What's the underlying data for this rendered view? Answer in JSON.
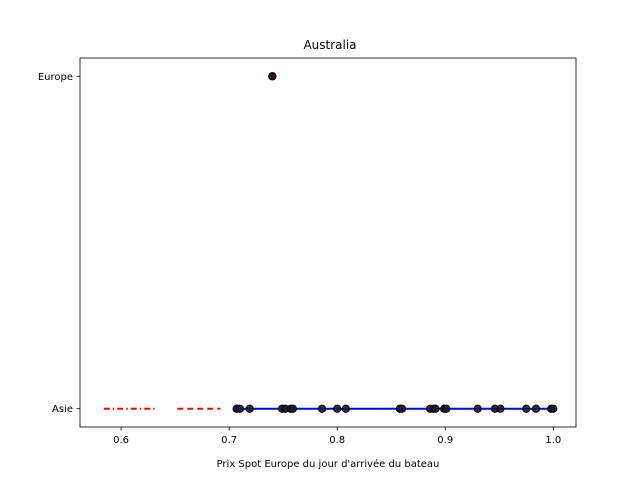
{
  "chart_data": {
    "type": "scatter",
    "title": "Australia",
    "xlabel": "Prix Spot Europe du jour d'arrivée du bateau",
    "ylabel": "",
    "xlim": [
      0.562,
      1.021
    ],
    "ylim": [
      -0.055,
      1.055
    ],
    "x_ticks": [
      0.6,
      0.7,
      0.8,
      0.9,
      1.0
    ],
    "x_tick_labels": [
      "0.6",
      "0.7",
      "0.8",
      "0.9",
      "1.0"
    ],
    "y_ticks": [
      0,
      1
    ],
    "y_tick_labels": [
      "Asie",
      "Europe"
    ],
    "grid": false,
    "points": {
      "x": [
        0.707,
        0.71,
        0.719,
        0.74,
        0.749,
        0.752,
        0.757,
        0.759,
        0.786,
        0.8,
        0.808,
        0.858,
        0.86,
        0.886,
        0.889,
        0.891,
        0.899,
        0.901,
        0.93,
        0.946,
        0.951,
        0.975,
        0.984,
        0.998,
        1.0
      ],
      "y": [
        0,
        0,
        0,
        1,
        0,
        0,
        0,
        0,
        0,
        0,
        0,
        0,
        0,
        0,
        0,
        0,
        0,
        0,
        0,
        0,
        0,
        0,
        0,
        0,
        0
      ],
      "marker_face": "#1a1a33",
      "marker_edge": "#000000",
      "highlight_x": [
        0.707,
        0.74
      ],
      "highlight_y": [
        0,
        1
      ],
      "highlight_color": "#ff0000"
    },
    "lines": [
      {
        "x": [
          0.707,
          1.0
        ],
        "y": [
          0,
          0
        ],
        "color": "#0000ff",
        "style": "solid"
      },
      {
        "x": [
          0.584,
          0.632
        ],
        "y": [
          0,
          0
        ],
        "color": "#ff0000",
        "style": "dashdot"
      },
      {
        "x": [
          0.652,
          0.692
        ],
        "y": [
          0,
          0
        ],
        "color": "#ff0000",
        "style": "dashed"
      }
    ]
  }
}
